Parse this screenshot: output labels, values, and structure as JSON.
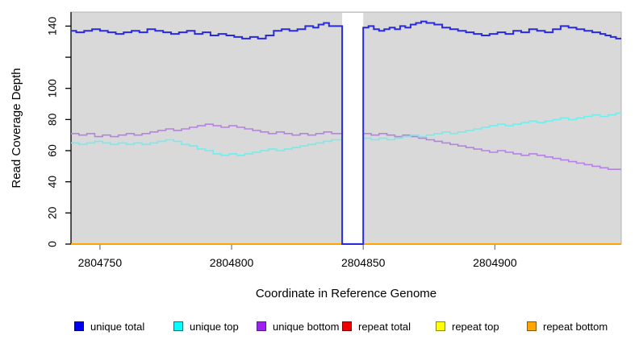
{
  "figure": {
    "background": "#FFFFFF",
    "panel_background": "#D9D9D9",
    "panel_border": "#B3B3B3",
    "x_tick_color": "#808080",
    "y_axis_color": "#000000"
  },
  "chart_data": {
    "type": "line",
    "line_style": "step",
    "title": "",
    "xlabel": "Coordinate in Reference Genome",
    "ylabel": "Read Coverage Depth",
    "xlim": [
      2804739,
      2804948
    ],
    "ylim": [
      0,
      149
    ],
    "grid": false,
    "legend_position": "bottom",
    "xticks": [
      {
        "v": 2804750,
        "label": "2804750"
      },
      {
        "v": 2804800,
        "label": "2804800"
      },
      {
        "v": 2804850,
        "label": "2804850"
      },
      {
        "v": 2804900,
        "label": "2804900"
      }
    ],
    "yticks": [
      {
        "v": 0,
        "label": "0"
      },
      {
        "v": 20,
        "label": "20"
      },
      {
        "v": 40,
        "label": "40"
      },
      {
        "v": 60,
        "label": "60"
      },
      {
        "v": 80,
        "label": "80"
      },
      {
        "v": 100,
        "label": "100"
      },
      {
        "v": 120,
        "label": ""
      },
      {
        "v": 140,
        "label": "140"
      }
    ],
    "gap": {
      "x_start": 2804842,
      "x_end": 2804850,
      "fill": "#FFFFFF",
      "note": "no-data region, blue total line drops to 0 at its edges"
    },
    "series": [
      {
        "name": "unique bottom",
        "color": "#B582E3",
        "width": 1.6,
        "points": [
          [
            2804739,
            71
          ],
          [
            2804742,
            70
          ],
          [
            2804745,
            71
          ],
          [
            2804748,
            69
          ],
          [
            2804751,
            70
          ],
          [
            2804754,
            69
          ],
          [
            2804757,
            70
          ],
          [
            2804760,
            71
          ],
          [
            2804763,
            70
          ],
          [
            2804766,
            71
          ],
          [
            2804769,
            72
          ],
          [
            2804772,
            73
          ],
          [
            2804775,
            74
          ],
          [
            2804778,
            73
          ],
          [
            2804781,
            74
          ],
          [
            2804784,
            75
          ],
          [
            2804787,
            76
          ],
          [
            2804790,
            77
          ],
          [
            2804793,
            76
          ],
          [
            2804796,
            75
          ],
          [
            2804799,
            76
          ],
          [
            2804802,
            75
          ],
          [
            2804805,
            74
          ],
          [
            2804808,
            73
          ],
          [
            2804811,
            72
          ],
          [
            2804814,
            71
          ],
          [
            2804817,
            72
          ],
          [
            2804820,
            71
          ],
          [
            2804823,
            70
          ],
          [
            2804826,
            71
          ],
          [
            2804829,
            70
          ],
          [
            2804832,
            71
          ],
          [
            2804835,
            72
          ],
          [
            2804838,
            71
          ],
          [
            2804850,
            71
          ],
          [
            2804853,
            70
          ],
          [
            2804856,
            71
          ],
          [
            2804859,
            70
          ],
          [
            2804862,
            69
          ],
          [
            2804865,
            70
          ],
          [
            2804868,
            69
          ],
          [
            2804871,
            68
          ],
          [
            2804874,
            67
          ],
          [
            2804877,
            66
          ],
          [
            2804880,
            65
          ],
          [
            2804883,
            64
          ],
          [
            2804886,
            63
          ],
          [
            2804889,
            62
          ],
          [
            2804892,
            61
          ],
          [
            2804895,
            60
          ],
          [
            2804898,
            59
          ],
          [
            2804901,
            60
          ],
          [
            2804904,
            59
          ],
          [
            2804907,
            58
          ],
          [
            2804910,
            57
          ],
          [
            2804913,
            58
          ],
          [
            2804916,
            57
          ],
          [
            2804919,
            56
          ],
          [
            2804922,
            55
          ],
          [
            2804925,
            54
          ],
          [
            2804928,
            53
          ],
          [
            2804931,
            52
          ],
          [
            2804934,
            51
          ],
          [
            2804937,
            50
          ],
          [
            2804940,
            49
          ],
          [
            2804943,
            48
          ],
          [
            2804948,
            48
          ]
        ]
      },
      {
        "name": "unique top",
        "color": "#74ECEC",
        "width": 1.6,
        "points": [
          [
            2804739,
            65
          ],
          [
            2804742,
            64
          ],
          [
            2804745,
            65
          ],
          [
            2804748,
            66
          ],
          [
            2804751,
            65
          ],
          [
            2804754,
            64
          ],
          [
            2804757,
            65
          ],
          [
            2804760,
            64
          ],
          [
            2804763,
            65
          ],
          [
            2804766,
            64
          ],
          [
            2804769,
            65
          ],
          [
            2804772,
            66
          ],
          [
            2804775,
            67
          ],
          [
            2804778,
            66
          ],
          [
            2804781,
            64
          ],
          [
            2804784,
            63
          ],
          [
            2804787,
            61
          ],
          [
            2804790,
            60
          ],
          [
            2804793,
            58
          ],
          [
            2804796,
            57
          ],
          [
            2804799,
            58
          ],
          [
            2804802,
            57
          ],
          [
            2804805,
            58
          ],
          [
            2804808,
            59
          ],
          [
            2804811,
            60
          ],
          [
            2804814,
            61
          ],
          [
            2804817,
            60
          ],
          [
            2804820,
            61
          ],
          [
            2804823,
            62
          ],
          [
            2804826,
            63
          ],
          [
            2804829,
            64
          ],
          [
            2804832,
            65
          ],
          [
            2804835,
            66
          ],
          [
            2804838,
            67
          ],
          [
            2804850,
            68
          ],
          [
            2804853,
            67
          ],
          [
            2804856,
            68
          ],
          [
            2804859,
            67
          ],
          [
            2804862,
            68
          ],
          [
            2804865,
            69
          ],
          [
            2804868,
            70
          ],
          [
            2804871,
            69
          ],
          [
            2804874,
            70
          ],
          [
            2804877,
            71
          ],
          [
            2804880,
            72
          ],
          [
            2804883,
            71
          ],
          [
            2804886,
            72
          ],
          [
            2804889,
            73
          ],
          [
            2804892,
            74
          ],
          [
            2804895,
            75
          ],
          [
            2804898,
            76
          ],
          [
            2804901,
            77
          ],
          [
            2804904,
            76
          ],
          [
            2804907,
            77
          ],
          [
            2804910,
            78
          ],
          [
            2804913,
            79
          ],
          [
            2804916,
            78
          ],
          [
            2804919,
            79
          ],
          [
            2804922,
            80
          ],
          [
            2804925,
            81
          ],
          [
            2804928,
            80
          ],
          [
            2804931,
            81
          ],
          [
            2804934,
            82
          ],
          [
            2804937,
            83
          ],
          [
            2804940,
            82
          ],
          [
            2804943,
            83
          ],
          [
            2804946,
            84
          ],
          [
            2804948,
            84
          ]
        ]
      },
      {
        "name": "repeat total",
        "color": "#DD0000",
        "width": 1.5,
        "points": [
          [
            2804739,
            0
          ],
          [
            2804948,
            0
          ]
        ]
      },
      {
        "name": "repeat top",
        "color": "#FFFF00",
        "width": 1.5,
        "points": [
          [
            2804739,
            0
          ],
          [
            2804948,
            0
          ]
        ]
      },
      {
        "name": "repeat bottom",
        "color": "#FFA500",
        "width": 2,
        "points": [
          [
            2804739,
            0
          ],
          [
            2804948,
            0
          ]
        ]
      },
      {
        "name": "unique total",
        "color": "#2A2ADD",
        "width": 2,
        "points": [
          [
            2804739,
            137
          ],
          [
            2804741,
            136
          ],
          [
            2804744,
            137
          ],
          [
            2804747,
            138
          ],
          [
            2804750,
            137
          ],
          [
            2804753,
            136
          ],
          [
            2804756,
            135
          ],
          [
            2804759,
            136
          ],
          [
            2804762,
            137
          ],
          [
            2804765,
            136
          ],
          [
            2804768,
            138
          ],
          [
            2804771,
            137
          ],
          [
            2804774,
            136
          ],
          [
            2804777,
            135
          ],
          [
            2804780,
            136
          ],
          [
            2804783,
            137
          ],
          [
            2804786,
            135
          ],
          [
            2804789,
            136
          ],
          [
            2804792,
            134
          ],
          [
            2804795,
            135
          ],
          [
            2804798,
            134
          ],
          [
            2804801,
            133
          ],
          [
            2804804,
            132
          ],
          [
            2804807,
            133
          ],
          [
            2804810,
            132
          ],
          [
            2804813,
            134
          ],
          [
            2804816,
            137
          ],
          [
            2804819,
            138
          ],
          [
            2804822,
            137
          ],
          [
            2804825,
            138
          ],
          [
            2804828,
            140
          ],
          [
            2804831,
            139
          ],
          [
            2804833,
            141
          ],
          [
            2804835,
            142
          ],
          [
            2804837,
            140
          ],
          [
            2804842,
            0
          ],
          [
            2804850,
            139
          ],
          [
            2804852,
            140
          ],
          [
            2804854,
            138
          ],
          [
            2804856,
            137
          ],
          [
            2804858,
            138
          ],
          [
            2804860,
            139
          ],
          [
            2804862,
            138
          ],
          [
            2804864,
            140
          ],
          [
            2804866,
            139
          ],
          [
            2804868,
            141
          ],
          [
            2804870,
            142
          ],
          [
            2804872,
            143
          ],
          [
            2804874,
            142
          ],
          [
            2804877,
            141
          ],
          [
            2804880,
            139
          ],
          [
            2804883,
            138
          ],
          [
            2804886,
            137
          ],
          [
            2804889,
            136
          ],
          [
            2804892,
            135
          ],
          [
            2804895,
            134
          ],
          [
            2804898,
            135
          ],
          [
            2804901,
            136
          ],
          [
            2804904,
            135
          ],
          [
            2804907,
            137
          ],
          [
            2804910,
            136
          ],
          [
            2804913,
            138
          ],
          [
            2804916,
            137
          ],
          [
            2804919,
            136
          ],
          [
            2804922,
            138
          ],
          [
            2804925,
            140
          ],
          [
            2804928,
            139
          ],
          [
            2804931,
            138
          ],
          [
            2804934,
            137
          ],
          [
            2804937,
            136
          ],
          [
            2804940,
            135
          ],
          [
            2804942,
            134
          ],
          [
            2804944,
            133
          ],
          [
            2804946,
            132
          ]
        ]
      }
    ],
    "legend": {
      "items": [
        {
          "label": "unique total",
          "fill": "#0000EE",
          "border": "#00008B"
        },
        {
          "label": "unique top",
          "fill": "#00FFFF",
          "border": "#007A7A"
        },
        {
          "label": "unique bottom",
          "fill": "#A020F0",
          "border": "#551A8B"
        },
        {
          "label": "repeat total",
          "fill": "#EE0000",
          "border": "#8B0000"
        },
        {
          "label": "repeat top",
          "fill": "#FFFF00",
          "border": "#8B8B00"
        },
        {
          "label": "repeat bottom",
          "fill": "#FFA500",
          "border": "#8B5A00"
        }
      ]
    }
  }
}
